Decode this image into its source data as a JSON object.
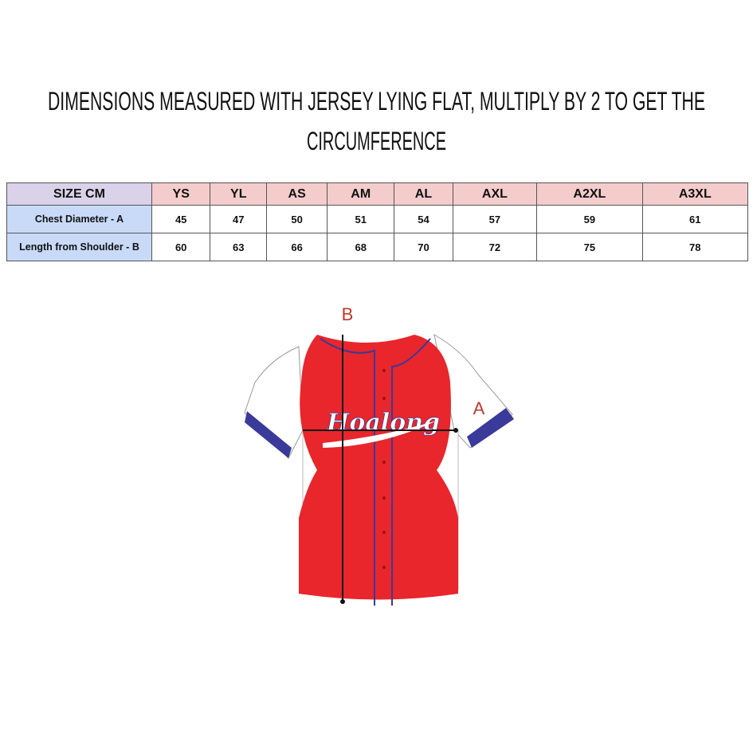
{
  "title_lines": [
    "DIMENSIONS MEASURED WITH JERSEY LYING FLAT, MULTIPLY BY 2 TO GET THE",
    "CIRCUMFERENCE"
  ],
  "table": {
    "header": [
      "SIZE CM",
      "YS",
      "YL",
      "AS",
      "AM",
      "AL",
      "AXL",
      "A2XL",
      "A3XL"
    ],
    "rows": [
      [
        "Chest Diameter - A",
        "45",
        "47",
        "50",
        "51",
        "54",
        "57",
        "59",
        "61"
      ],
      [
        "Length from Shoulder - B",
        "60",
        "63",
        "66",
        "68",
        "70",
        "72",
        "75",
        "78"
      ]
    ]
  },
  "diagram": {
    "label_a": "A",
    "label_b": "B",
    "logo": "Hoalong",
    "jersey_color": "#e8262c",
    "trim_color": "#3a3a9a"
  }
}
